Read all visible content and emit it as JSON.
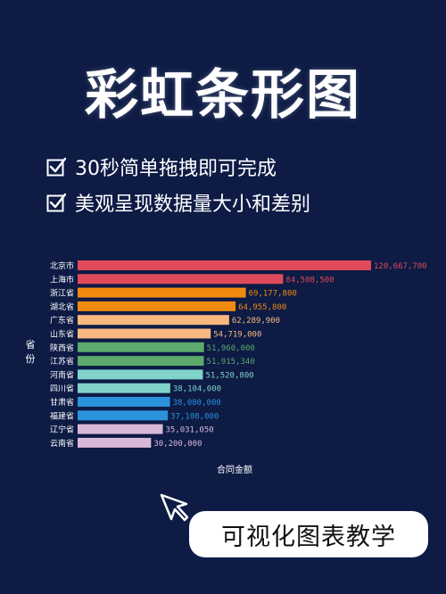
{
  "page": {
    "title": "彩虹条形图",
    "features": [
      {
        "icon": "checkbox-checked-icon",
        "text": "30秒简单拖拽即可完成"
      },
      {
        "icon": "checkbox-checked-icon",
        "text": "美观呈现数据量大小和差别"
      }
    ],
    "cursor_icon": "pointer-cursor-icon",
    "bottom_button": "可视化图表教学"
  },
  "chart_data": {
    "type": "bar",
    "orientation": "horizontal",
    "categories": [
      "北京市",
      "上海市",
      "浙江省",
      "湖北省",
      "广东省",
      "山东省",
      "陕西省",
      "江苏省",
      "河南省",
      "四川省",
      "甘肃省",
      "福建省",
      "辽宁省",
      "云南省"
    ],
    "values": [
      120667700,
      84508500,
      69177800,
      64955800,
      62289900,
      54719000,
      51960000,
      51915340,
      51520800,
      38104000,
      38000000,
      37108000,
      35031050,
      30200000
    ],
    "value_labels": [
      "120,667,700",
      "84,508,500",
      "69,177,800",
      "64,955,800",
      "62,289,900",
      "54,719,000",
      "51,960,000",
      "51,915,340",
      "51,520,800",
      "38,104,000",
      "38,000,000",
      "37,108,000",
      "35,031,050",
      "30,200,000"
    ],
    "colors": [
      "#e04a5a",
      "#e04a5a",
      "#f0890f",
      "#f0890f",
      "#f9b880",
      "#f9b880",
      "#5daa6c",
      "#5daa6c",
      "#7fd3c9",
      "#7fd3c9",
      "#2a93dc",
      "#2a93dc",
      "#d8b8d8",
      "#d8b8d8"
    ],
    "label_colors": [
      "#e04a5a",
      "#e04a5a",
      "#f0890f",
      "#f0890f",
      "#f9b880",
      "#f9b880",
      "#5daa6c",
      "#5daa6c",
      "#7fd3c9",
      "#7fd3c9",
      "#2a93dc",
      "#2a93dc",
      "#d8b8d8",
      "#d8b8d8"
    ],
    "ylabel": "省份",
    "xlabel": "合同金额",
    "xlim": [
      0,
      120667700
    ],
    "grid": false
  }
}
